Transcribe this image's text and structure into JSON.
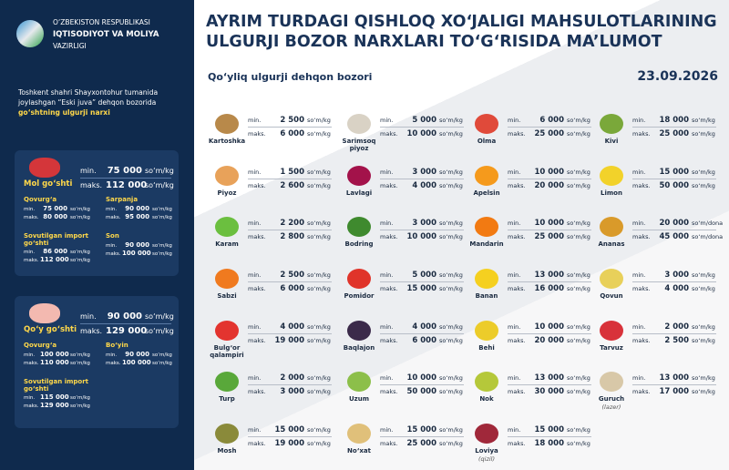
{
  "header": {
    "ministry": [
      "O‘ZBEKISTON RESPUBLIKASI",
      "IQTISODIYOT VA MOLIYA",
      "VAZIRLIGI"
    ],
    "title": [
      "AYRIM TURDAGI QISHLOQ XO‘JALIGI MAHSULOTLARINING",
      "ULGURJI BOZOR NARXLARI TO‘G‘RISIDA MA’LUMOT"
    ],
    "market": "Qo‘yliq ulgurji dehqon bozori",
    "date": "23.09.2026"
  },
  "labels": {
    "min": "min.",
    "max": "maks."
  },
  "intro": {
    "text": "Toshkent shahri Shayxontohur tumanida joylashgan “Eski juva” dehqon bozorida",
    "highlight": "go‘shtning ulgurji narxi"
  },
  "meat": [
    {
      "name": "Mol go‘shti",
      "min": "75 000",
      "max": "112 000",
      "unit": "so‘m/kg",
      "cuts": [
        {
          "name": "Qovurg‘a",
          "min": "75 000",
          "max": "80 000",
          "unit": "so‘m/kg"
        },
        {
          "name": "Sarpanja",
          "min": "90 000",
          "max": "95 000",
          "unit": "so‘m/kg"
        },
        {
          "name": "Sovutilgan import go‘shti",
          "min": "86 000",
          "max": "112 000",
          "unit": "so‘m/kg"
        },
        {
          "name": "Son",
          "min": "90 000",
          "max": "100 000",
          "unit": "so‘m/kg"
        }
      ]
    },
    {
      "name": "Qo‘y go‘shti",
      "min": "90 000",
      "max": "129 000",
      "unit": "so‘m/kg",
      "cuts": [
        {
          "name": "Qovurg‘a",
          "min": "100 000",
          "max": "110 000",
          "unit": "so‘m/kg"
        },
        {
          "name": "Bo‘yin",
          "min": "90 000",
          "max": "100 000",
          "unit": "so‘m/kg"
        },
        {
          "name": "Sovutilgan import go‘shti",
          "min": "115 000",
          "max": "129 000",
          "unit": "so‘m/kg"
        }
      ]
    }
  ],
  "products": [
    [
      {
        "name": "Kartoshka",
        "min": "2 500",
        "max": "6 000",
        "unit": "so‘m/kg",
        "color": "#b8894a"
      },
      {
        "name": "Piyoz",
        "min": "1 500",
        "max": "2 600",
        "unit": "so‘m/kg",
        "color": "#e8a25a"
      },
      {
        "name": "Karam",
        "min": "2 200",
        "max": "2 800",
        "unit": "so‘m/kg",
        "color": "#6bbf3f"
      },
      {
        "name": "Sabzi",
        "min": "2 500",
        "max": "6 000",
        "unit": "so‘m/kg",
        "color": "#f07a1f"
      },
      {
        "name": "Bulg‘or qalampiri",
        "min": "4 000",
        "max": "19 000",
        "unit": "so‘m/kg",
        "color": "#e3342f"
      },
      {
        "name": "Turp",
        "min": "2 000",
        "max": "3 000",
        "unit": "so‘m/kg",
        "color": "#59a83a"
      },
      {
        "name": "Mosh",
        "min": "15 000",
        "max": "19 000",
        "unit": "so‘m/kg",
        "color": "#8a8a3a"
      }
    ],
    [
      {
        "name": "Sarimsoq piyoz",
        "min": "5 000",
        "max": "10 000",
        "unit": "so‘m/kg",
        "color": "#d9d2c5"
      },
      {
        "name": "Lavlagi",
        "min": "3 000",
        "max": "4 000",
        "unit": "so‘m/kg",
        "color": "#a3124a"
      },
      {
        "name": "Bodring",
        "min": "3 000",
        "max": "10 000",
        "unit": "so‘m/kg",
        "color": "#3f8a2e"
      },
      {
        "name": "Pomidor",
        "min": "5 000",
        "max": "15 000",
        "unit": "so‘m/kg",
        "color": "#e0342a"
      },
      {
        "name": "Baqlajon",
        "min": "4 000",
        "max": "6 000",
        "unit": "so‘m/kg",
        "color": "#3b2a4a"
      },
      {
        "name": "Uzum",
        "min": "10 000",
        "max": "50 000",
        "unit": "so‘m/kg",
        "color": "#8cbf4a"
      },
      {
        "name": "No‘xat",
        "min": "15 000",
        "max": "25 000",
        "unit": "so‘m/kg",
        "color": "#e0c07a"
      }
    ],
    [
      {
        "name": "Olma",
        "min": "6 000",
        "max": "25 000",
        "unit": "so‘m/kg",
        "color": "#e04a3a"
      },
      {
        "name": "Apelsin",
        "min": "10 000",
        "max": "20 000",
        "unit": "so‘m/kg",
        "color": "#f59a1c"
      },
      {
        "name": "Mandarin",
        "min": "10 000",
        "max": "25 000",
        "unit": "so‘m/kg",
        "color": "#f27a12"
      },
      {
        "name": "Banan",
        "min": "13 000",
        "max": "16 000",
        "unit": "so‘m/kg",
        "color": "#f5d020"
      },
      {
        "name": "Behi",
        "min": "10 000",
        "max": "20 000",
        "unit": "so‘m/kg",
        "color": "#eccc2a"
      },
      {
        "name": "Nok",
        "min": "13 000",
        "max": "30 000",
        "unit": "so‘m/kg",
        "color": "#b5c83a"
      },
      {
        "name": "Loviya",
        "note": "(qizil)",
        "min": "15 000",
        "max": "18 000",
        "unit": "so‘m/kg",
        "color": "#a0283a"
      }
    ],
    [
      {
        "name": "Kivi",
        "min": "18 000",
        "max": "25 000",
        "unit": "so‘m/kg",
        "color": "#7aa83a"
      },
      {
        "name": "Limon",
        "min": "15 000",
        "max": "50 000",
        "unit": "so‘m/kg",
        "color": "#f2d22a"
      },
      {
        "name": "Ananas",
        "min": "20 000",
        "max": "45 000",
        "unit": "so‘m/dona",
        "color": "#d99a2a"
      },
      {
        "name": "Qovun",
        "min": "3 000",
        "max": "4 000",
        "unit": "so‘m/kg",
        "color": "#e8d05a"
      },
      {
        "name": "Tarvuz",
        "min": "2 000",
        "max": "2 500",
        "unit": "so‘m/kg",
        "color": "#d8323a"
      },
      {
        "name": "Guruch",
        "note": "(lazer)",
        "min": "13 000",
        "max": "17 000",
        "unit": "so‘m/kg",
        "color": "#d8c8a8"
      }
    ]
  ]
}
